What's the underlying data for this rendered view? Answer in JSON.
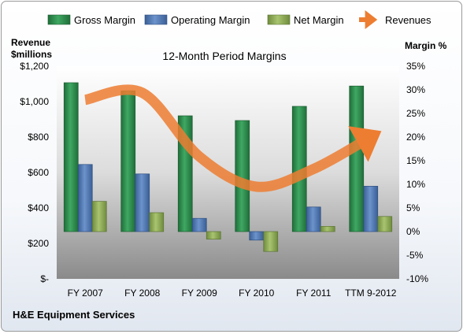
{
  "chart_data": {
    "type": "bar",
    "title": "12-Month Period Margins",
    "footer": "H&E Equipment Services",
    "y_left_label_line1": "Revenue",
    "y_left_label_line2": "$millions",
    "y_right_label": "Margin %",
    "categories": [
      "FY 2007",
      "FY 2008",
      "FY 2009",
      "FY 2010",
      "FY 2011",
      "TTM 9-2012"
    ],
    "left_axis": {
      "min": 0,
      "max": 1200,
      "ticks": [
        "$-",
        "$200",
        "$400",
        "$600",
        "$800",
        "$1,000",
        "$1,200"
      ]
    },
    "right_axis": {
      "min": -10,
      "max": 35,
      "ticks": [
        "-10%",
        "-5%",
        "0%",
        "5%",
        "10%",
        "15%",
        "20%",
        "25%",
        "30%",
        "35%"
      ]
    },
    "series": [
      {
        "name": "Gross Margin",
        "axis": "right",
        "color": "#2e8b4c",
        "values": [
          31.5,
          29.8,
          24.5,
          23.5,
          26.5,
          30.8
        ]
      },
      {
        "name": "Operating Margin",
        "axis": "right",
        "color": "#4f78b4",
        "values": [
          14.2,
          12.2,
          2.8,
          -1.8,
          5.2,
          9.6
        ]
      },
      {
        "name": "Net Margin",
        "axis": "right",
        "color": "#8fad56",
        "values": [
          6.4,
          4.0,
          -1.6,
          -4.2,
          1.1,
          3.2
        ]
      },
      {
        "name": "Revenues",
        "axis": "left",
        "type": "line",
        "color": "#ed7d31",
        "values": [
          1010,
          1050,
          690,
          520,
          620,
          800
        ]
      }
    ],
    "legend_position": "top",
    "grid": false
  }
}
